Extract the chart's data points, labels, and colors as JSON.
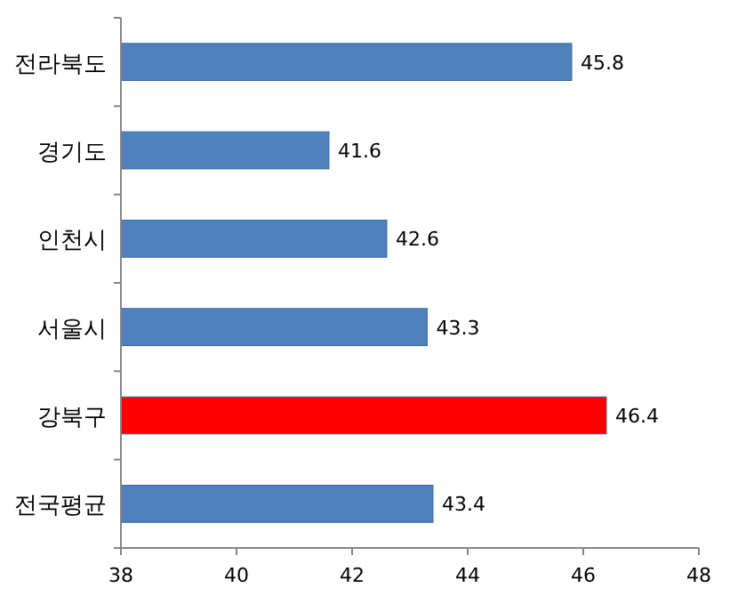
{
  "chart_data": {
    "type": "bar",
    "orientation": "horizontal",
    "categories": [
      "전라북도",
      "경기도",
      "인천시",
      "서울시",
      "강북구",
      "전국평균"
    ],
    "values": [
      45.8,
      41.6,
      42.6,
      43.3,
      46.4,
      43.4
    ],
    "colors": [
      "#4f81bd",
      "#4f81bd",
      "#4f81bd",
      "#4f81bd",
      "#ff0000",
      "#4f81bd"
    ],
    "xlim": [
      38,
      48
    ],
    "xticks": [
      38,
      40,
      42,
      44,
      46,
      48
    ],
    "data_labels": true,
    "grid": false
  }
}
